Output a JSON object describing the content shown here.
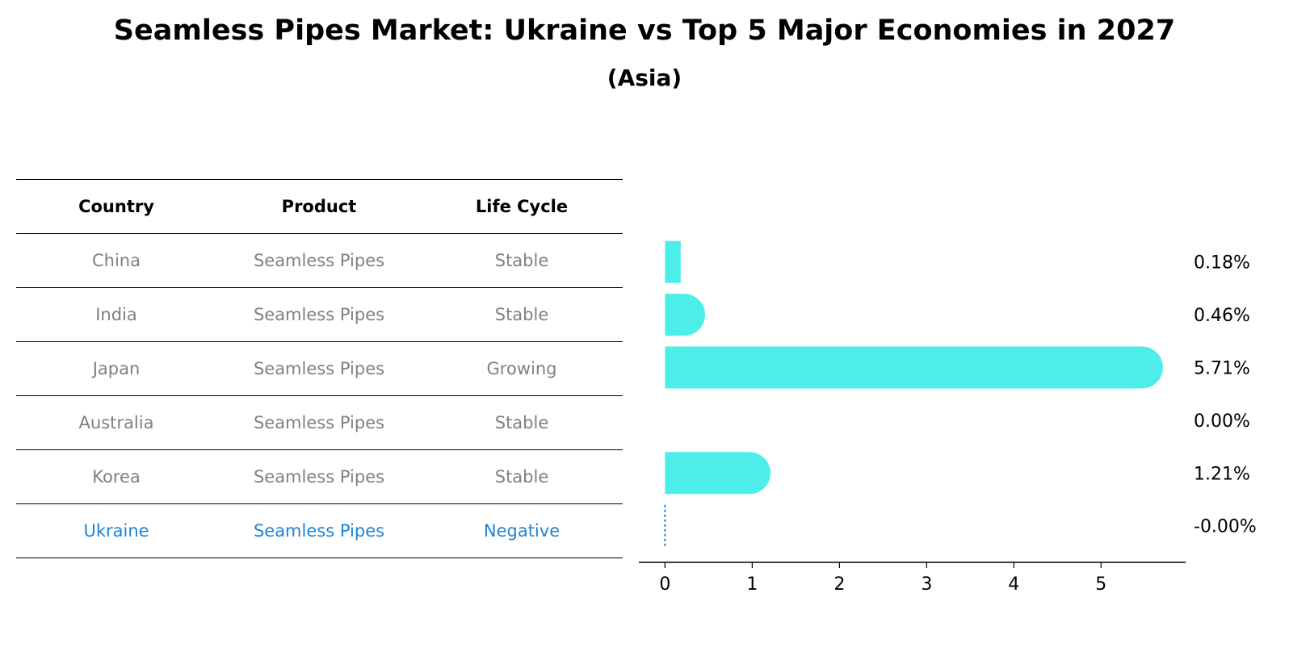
{
  "title": "Seamless Pipes Market: Ukraine vs Top 5 Major Economies in 2027",
  "subtitle": "(Asia)",
  "table": {
    "headers": [
      "Country",
      "Product",
      "Life Cycle"
    ],
    "rows": [
      [
        "China",
        "Seamless Pipes",
        "Stable"
      ],
      [
        "India",
        "Seamless Pipes",
        "Stable"
      ],
      [
        "Japan",
        "Seamless Pipes",
        "Growing"
      ],
      [
        "Australia",
        "Seamless Pipes",
        "Stable"
      ],
      [
        "Korea",
        "Seamless Pipes",
        "Stable"
      ],
      [
        "Ukraine",
        "Seamless Pipes",
        "Negative"
      ]
    ]
  },
  "colors": {
    "bar": "#4deeea",
    "highlight": "#1f83d6",
    "muted": "#808080"
  },
  "chart_data": {
    "type": "bar",
    "orientation": "horizontal",
    "categories": [
      "China",
      "India",
      "Japan",
      "Australia",
      "Korea",
      "Ukraine"
    ],
    "values": [
      0.18,
      0.46,
      5.71,
      0.0,
      1.21,
      -0.0
    ],
    "value_labels": [
      "0.18%",
      "0.46%",
      "5.71%",
      "0.00%",
      "1.21%",
      "-0.00%"
    ],
    "xticks": [
      0,
      1,
      2,
      3,
      4,
      5
    ],
    "xlim": [
      -0.3,
      5.97
    ],
    "highlight_category": "Ukraine"
  }
}
